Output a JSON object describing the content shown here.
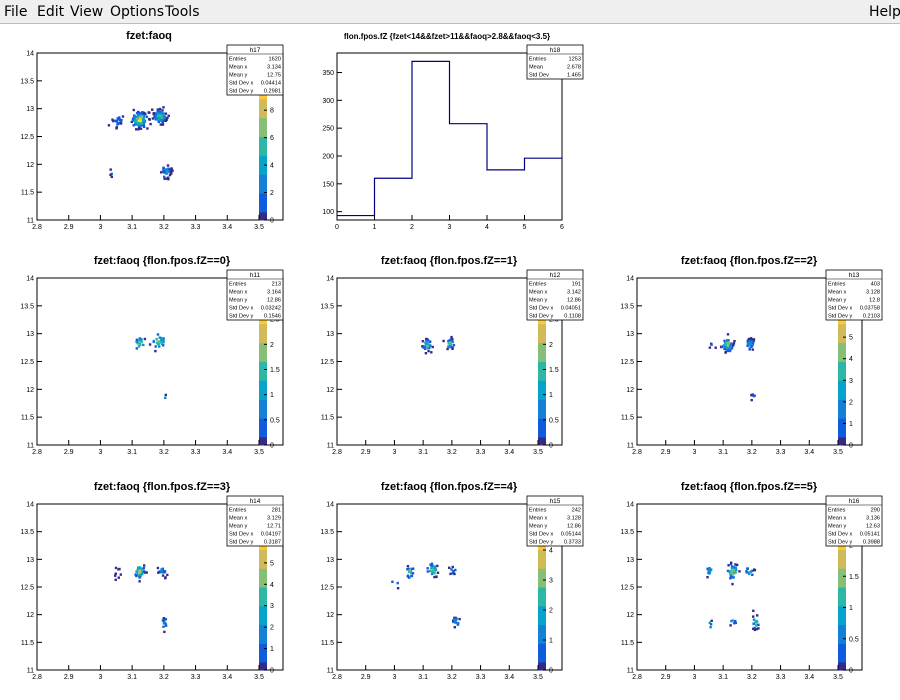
{
  "menu": {
    "file": "File",
    "edit": "Edit",
    "view": "View",
    "options": "Options",
    "tools": "Tools",
    "help": "Help"
  },
  "colors": {
    "axis": "#000000",
    "histogram_line": "#000080",
    "palette": [
      "#352a87",
      "#0f5cdd",
      "#1481d6",
      "#06a4ca",
      "#2eb7a4",
      "#87bf77",
      "#d1bb59",
      "#fec832",
      "#f9fb0e"
    ]
  },
  "chart_data": [
    {
      "id": "h17",
      "type": "heatmap",
      "title": "fzet:faoq",
      "xlim": [
        2.8,
        3.5
      ],
      "ylim": [
        11,
        14
      ],
      "xticks": [
        "2.8",
        "2.9",
        "3",
        "3.1",
        "3.2",
        "3.3",
        "3.4",
        "3.5"
      ],
      "yticks": [
        "11",
        "11.5",
        "12",
        "12.5",
        "13",
        "13.5",
        "14"
      ],
      "zmax": 11,
      "zticks": [
        "0",
        "2",
        "4",
        "6",
        "8",
        "10"
      ],
      "stats": {
        "name": "h17",
        "rows": [
          [
            "Entries",
            "1620"
          ],
          [
            "Mean x",
            "3.134"
          ],
          [
            "Mean y",
            "12.75"
          ],
          [
            "Std Dev x",
            "0.04414"
          ],
          [
            "Std Dev y",
            "0.2981"
          ]
        ]
      },
      "clusters": [
        {
          "x": 3.12,
          "y": 12.82,
          "n": 120,
          "sx": 0.012,
          "sy": 0.07,
          "z": 11
        },
        {
          "x": 3.185,
          "y": 12.88,
          "n": 90,
          "sx": 0.01,
          "sy": 0.06,
          "z": 8
        },
        {
          "x": 3.05,
          "y": 12.8,
          "n": 25,
          "sx": 0.008,
          "sy": 0.05,
          "z": 3
        },
        {
          "x": 3.205,
          "y": 11.88,
          "n": 40,
          "sx": 0.008,
          "sy": 0.07,
          "z": 4
        },
        {
          "x": 3.03,
          "y": 11.85,
          "n": 4,
          "sx": 0.004,
          "sy": 0.04,
          "z": 1
        }
      ]
    },
    {
      "id": "h18",
      "type": "bar",
      "title": "flon.fpos.fZ {fzet<14&&fzet>11&&faoq>2.8&&faoq<3.5}",
      "categories": [
        "0",
        "1",
        "2",
        "3",
        "4",
        "5"
      ],
      "bins": [
        0,
        1,
        2,
        3,
        4,
        5,
        6
      ],
      "values": [
        93,
        160,
        370,
        258,
        175,
        196
      ],
      "xlim": [
        0,
        6
      ],
      "ylim": [
        85,
        385
      ],
      "xticks": [
        "0",
        "1",
        "2",
        "3",
        "4",
        "5",
        "6"
      ],
      "yticks": [
        "100",
        "150",
        "200",
        "250",
        "300",
        "350"
      ],
      "stats": {
        "name": "h18",
        "rows": [
          [
            "Entries",
            "1253"
          ],
          [
            "Mean",
            "2.678"
          ],
          [
            "Std Dev",
            "1.465"
          ]
        ]
      }
    },
    {
      "id": "h11",
      "type": "heatmap",
      "title": "fzet:faoq {flon.fpos.fZ==0}",
      "xlim": [
        2.8,
        3.5
      ],
      "ylim": [
        11,
        14
      ],
      "xticks": [
        "2.8",
        "2.9",
        "3",
        "3.1",
        "3.2",
        "3.3",
        "3.4",
        "3.5"
      ],
      "yticks": [
        "11",
        "11.5",
        "12",
        "12.5",
        "13",
        "13.5",
        "14"
      ],
      "zmax": 3,
      "zticks": [
        "0",
        "0.5",
        "1",
        "1.5",
        "2",
        "2.5",
        "3"
      ],
      "stats": {
        "name": "h11",
        "rows": [
          [
            "Entries",
            "213"
          ],
          [
            "Mean x",
            "3.164"
          ],
          [
            "Mean y",
            "12.86"
          ],
          [
            "Std Dev x",
            "0.03242"
          ],
          [
            "Std Dev y",
            "0.1546"
          ]
        ]
      },
      "clusters": [
        {
          "x": 3.12,
          "y": 12.85,
          "n": 20,
          "sx": 0.01,
          "sy": 0.06,
          "z": 2
        },
        {
          "x": 3.18,
          "y": 12.88,
          "n": 30,
          "sx": 0.01,
          "sy": 0.06,
          "z": 3
        },
        {
          "x": 3.2,
          "y": 11.88,
          "n": 2,
          "sx": 0.004,
          "sy": 0.03,
          "z": 1
        }
      ]
    },
    {
      "id": "h12",
      "type": "heatmap",
      "title": "fzet:faoq {flon.fpos.fZ==1}",
      "xlim": [
        2.8,
        3.5
      ],
      "ylim": [
        11,
        14
      ],
      "xticks": [
        "2.8",
        "2.9",
        "3",
        "3.1",
        "3.2",
        "3.3",
        "3.4",
        "3.5"
      ],
      "yticks": [
        "11",
        "11.5",
        "12",
        "12.5",
        "13",
        "13.5",
        "14"
      ],
      "zmax": 3,
      "zticks": [
        "0",
        "0.5",
        "1",
        "1.5",
        "2",
        "2.5"
      ],
      "stats": {
        "name": "h12",
        "rows": [
          [
            "Entries",
            "191"
          ],
          [
            "Mean x",
            "3.142"
          ],
          [
            "Mean y",
            "12.86"
          ],
          [
            "Std Dev x",
            "0.04051"
          ],
          [
            "Std Dev y",
            "0.1108"
          ]
        ]
      },
      "clusters": [
        {
          "x": 3.11,
          "y": 12.82,
          "n": 35,
          "sx": 0.008,
          "sy": 0.05,
          "z": 2
        },
        {
          "x": 3.19,
          "y": 12.84,
          "n": 30,
          "sx": 0.008,
          "sy": 0.05,
          "z": 2
        }
      ]
    },
    {
      "id": "h13",
      "type": "heatmap",
      "title": "fzet:faoq {flon.fpos.fZ==2}",
      "xlim": [
        2.8,
        3.5
      ],
      "ylim": [
        11,
        14
      ],
      "xticks": [
        "2.8",
        "2.9",
        "3",
        "3.1",
        "3.2",
        "3.3",
        "3.4",
        "3.5"
      ],
      "yticks": [
        "11",
        "11.5",
        "12",
        "12.5",
        "13",
        "13.5",
        "14"
      ],
      "zmax": 7,
      "zticks": [
        "0",
        "1",
        "2",
        "3",
        "4",
        "5",
        "6"
      ],
      "stats": {
        "name": "h13",
        "rows": [
          [
            "Entries",
            "403"
          ],
          [
            "Mean x",
            "3.128"
          ],
          [
            "Mean y",
            "12.8"
          ],
          [
            "Std Dev x",
            "0.03758"
          ],
          [
            "Std Dev y",
            "0.2103"
          ]
        ]
      },
      "clusters": [
        {
          "x": 3.11,
          "y": 12.82,
          "n": 70,
          "sx": 0.01,
          "sy": 0.06,
          "z": 6
        },
        {
          "x": 3.19,
          "y": 12.84,
          "n": 35,
          "sx": 0.008,
          "sy": 0.05,
          "z": 3
        },
        {
          "x": 3.2,
          "y": 11.88,
          "n": 6,
          "sx": 0.004,
          "sy": 0.05,
          "z": 1
        },
        {
          "x": 3.06,
          "y": 12.8,
          "n": 3,
          "sx": 0.006,
          "sy": 0.03,
          "z": 1
        }
      ]
    },
    {
      "id": "h14",
      "type": "heatmap",
      "title": "fzet:faoq {flon.fpos.fZ==3}",
      "xlim": [
        2.8,
        3.5
      ],
      "ylim": [
        11,
        14
      ],
      "xticks": [
        "2.8",
        "2.9",
        "3",
        "3.1",
        "3.2",
        "3.3",
        "3.4",
        "3.5"
      ],
      "yticks": [
        "11",
        "11.5",
        "12",
        "12.5",
        "13",
        "13.5",
        "14"
      ],
      "zmax": 7,
      "zticks": [
        "0",
        "1",
        "2",
        "3",
        "4",
        "5",
        "6"
      ],
      "stats": {
        "name": "h14",
        "rows": [
          [
            "Entries",
            "281"
          ],
          [
            "Mean x",
            "3.129"
          ],
          [
            "Mean y",
            "12.71"
          ],
          [
            "Std Dev x",
            "0.04197"
          ],
          [
            "Std Dev y",
            "0.3187"
          ]
        ]
      },
      "clusters": [
        {
          "x": 3.12,
          "y": 12.8,
          "n": 45,
          "sx": 0.008,
          "sy": 0.06,
          "z": 6
        },
        {
          "x": 3.19,
          "y": 12.82,
          "n": 18,
          "sx": 0.008,
          "sy": 0.05,
          "z": 2
        },
        {
          "x": 3.05,
          "y": 12.82,
          "n": 8,
          "sx": 0.005,
          "sy": 0.05,
          "z": 1
        },
        {
          "x": 3.2,
          "y": 11.88,
          "n": 14,
          "sx": 0.006,
          "sy": 0.06,
          "z": 2
        }
      ]
    },
    {
      "id": "h15",
      "type": "heatmap",
      "title": "fzet:faoq {flon.fpos.fZ==4}",
      "xlim": [
        2.8,
        3.5
      ],
      "ylim": [
        11,
        14
      ],
      "xticks": [
        "2.8",
        "2.9",
        "3",
        "3.1",
        "3.2",
        "3.3",
        "3.4",
        "3.5"
      ],
      "yticks": [
        "11",
        "11.5",
        "12",
        "12.5",
        "13",
        "13.5",
        "14"
      ],
      "zmax": 5,
      "zticks": [
        "0",
        "1",
        "2",
        "3",
        "4"
      ],
      "stats": {
        "name": "h15",
        "rows": [
          [
            "Entries",
            "242"
          ],
          [
            "Mean x",
            "3.128"
          ],
          [
            "Mean y",
            "12.86"
          ],
          [
            "Std Dev x",
            "0.05144"
          ],
          [
            "Std Dev y",
            "0.3733"
          ]
        ]
      },
      "clusters": [
        {
          "x": 3.13,
          "y": 12.82,
          "n": 35,
          "sx": 0.01,
          "sy": 0.06,
          "z": 4
        },
        {
          "x": 3.05,
          "y": 12.8,
          "n": 18,
          "sx": 0.006,
          "sy": 0.06,
          "z": 3
        },
        {
          "x": 3.2,
          "y": 12.82,
          "n": 10,
          "sx": 0.006,
          "sy": 0.04,
          "z": 1
        },
        {
          "x": 3.21,
          "y": 11.88,
          "n": 14,
          "sx": 0.006,
          "sy": 0.06,
          "z": 2
        },
        {
          "x": 3.0,
          "y": 12.6,
          "n": 3,
          "sx": 0.01,
          "sy": 0.05,
          "z": 1
        }
      ]
    },
    {
      "id": "h16",
      "type": "heatmap",
      "title": "fzet:faoq {flon.fpos.fZ==5}",
      "xlim": [
        2.8,
        3.5
      ],
      "ylim": [
        11,
        14
      ],
      "xticks": [
        "2.8",
        "2.9",
        "3",
        "3.1",
        "3.2",
        "3.3",
        "3.4",
        "3.5"
      ],
      "yticks": [
        "11",
        "11.5",
        "12",
        "12.5",
        "13",
        "13.5",
        "14"
      ],
      "zmax": 2.4,
      "zticks": [
        "0",
        "0.5",
        "1",
        "1.5",
        "2"
      ],
      "stats": {
        "name": "h16",
        "rows": [
          [
            "Entries",
            "290"
          ],
          [
            "Mean x",
            "3.136"
          ],
          [
            "Mean y",
            "12.63"
          ],
          [
            "Std Dev x",
            "0.05141"
          ],
          [
            "Std Dev y",
            "0.3988"
          ]
        ]
      },
      "clusters": [
        {
          "x": 3.13,
          "y": 12.8,
          "n": 40,
          "sx": 0.01,
          "sy": 0.07,
          "z": 2
        },
        {
          "x": 3.05,
          "y": 12.82,
          "n": 12,
          "sx": 0.008,
          "sy": 0.05,
          "z": 1
        },
        {
          "x": 3.19,
          "y": 12.8,
          "n": 12,
          "sx": 0.008,
          "sy": 0.05,
          "z": 1
        },
        {
          "x": 3.21,
          "y": 11.88,
          "n": 18,
          "sx": 0.006,
          "sy": 0.06,
          "z": 2
        },
        {
          "x": 3.13,
          "y": 11.9,
          "n": 6,
          "sx": 0.006,
          "sy": 0.05,
          "z": 1
        },
        {
          "x": 3.05,
          "y": 11.85,
          "n": 4,
          "sx": 0.005,
          "sy": 0.05,
          "z": 1
        }
      ]
    }
  ]
}
